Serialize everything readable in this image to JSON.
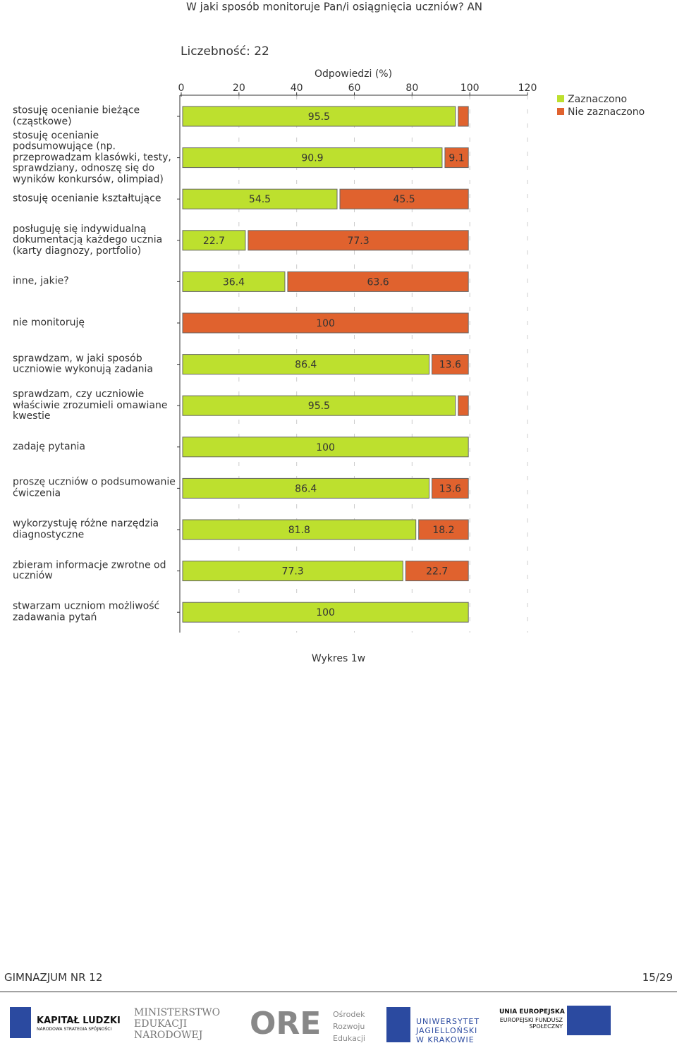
{
  "chart_data": {
    "type": "stacked_barh",
    "title": "W jaki sposób monitoruje Pan/i osiągnięcia uczniów?  AN",
    "subtitle": "Liczebność: 22",
    "x_label": "Odpowiedzi (%)",
    "categories": [
      "stosuję ocenianie bieżące (cząstkowe)",
      "stosuję ocenianie podsumowujące (np. przeprowadzam klasówki, testy, sprawdziany, odnoszę się do wyników konkursów, olimpiad)",
      "stosuję ocenianie kształtujące",
      "posługuję się indywidualną dokumentacją każdego ucznia (karty diagnozy, portfolio)",
      "inne, jakie?",
      "nie monitoruję",
      "sprawdzam, w jaki sposób uczniowie wykonują zadania",
      "sprawdzam, czy uczniowie właściwie zrozumieli omawiane kwestie",
      "zadaję pytania",
      "proszę uczniów o podsumowanie ćwiczenia",
      "wykorzystuję różne narzędzia diagnostyczne",
      "zbieram informacje zwrotne od uczniów",
      "stwarzam uczniom możliwość zadawania pytań"
    ],
    "series": [
      {
        "name": "Zaznaczono",
        "color": "#bde02e",
        "values": [
          95.5,
          90.9,
          54.5,
          22.7,
          36.4,
          0,
          86.4,
          95.5,
          100,
          86.4,
          81.8,
          77.3,
          100
        ]
      },
      {
        "name": "Nie zaznaczono",
        "color": "#e0622e",
        "values": [
          4.5,
          9.1,
          45.5,
          77.3,
          63.6,
          100,
          13.6,
          4.5,
          0,
          13.6,
          18.2,
          22.7,
          0
        ]
      }
    ],
    "xlim": [
      0,
      120
    ],
    "xticks": [
      0,
      20,
      40,
      60,
      80,
      100,
      120
    ],
    "grid": true,
    "legend": "top-right"
  },
  "caption": "Wykres 1w",
  "footer": {
    "left": "GIMNAZJUM NR 12",
    "right": "15/29"
  },
  "logos": [
    "KAPITAŁ LUDZKI",
    "NARODOWA STRATEGIA SPÓJNOŚCI",
    "MINISTERSTWO EDUKACJI NARODOWEJ",
    "ORE",
    "Ośrodek Rozwoju Edukacji",
    "UNIWERSYTET JAGIELLOŃSKI W KRAKOWIE",
    "UNIA EUROPEJSKA",
    "EUROPEJSKI FUNDUSZ SPOŁECZNY"
  ]
}
